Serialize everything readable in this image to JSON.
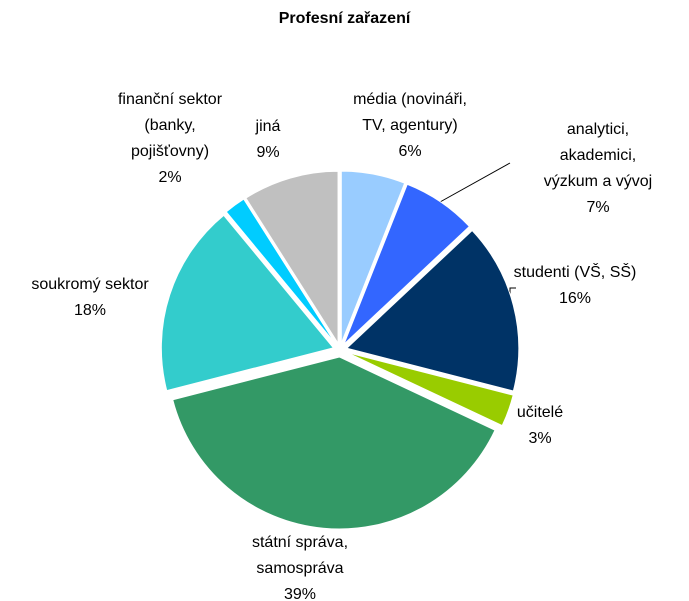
{
  "chart_data": {
    "type": "pie",
    "title": "Profesní zařazení",
    "categories": [
      "média (novináři,\nTV, agentury)",
      "analytici,\nakademici,\nvýzkum a vývoj",
      "studenti (VŠ, SŠ)",
      "učitelé",
      "státní správa,\nsamospráva",
      "soukromý sektor",
      "finanční sektor\n(banky,\npojišťovny)",
      "jiná"
    ],
    "values": [
      6,
      7,
      16,
      3,
      39,
      18,
      2,
      9
    ],
    "value_labels": [
      "6%",
      "7%",
      "16%",
      "3%",
      "39%",
      "18%",
      "2%",
      "9%"
    ],
    "colors": [
      "#99ccff",
      "#3366ff",
      "#003366",
      "#99cc00",
      "#339966",
      "#33cccc",
      "#00ccff",
      "#c0c0c0"
    ]
  }
}
